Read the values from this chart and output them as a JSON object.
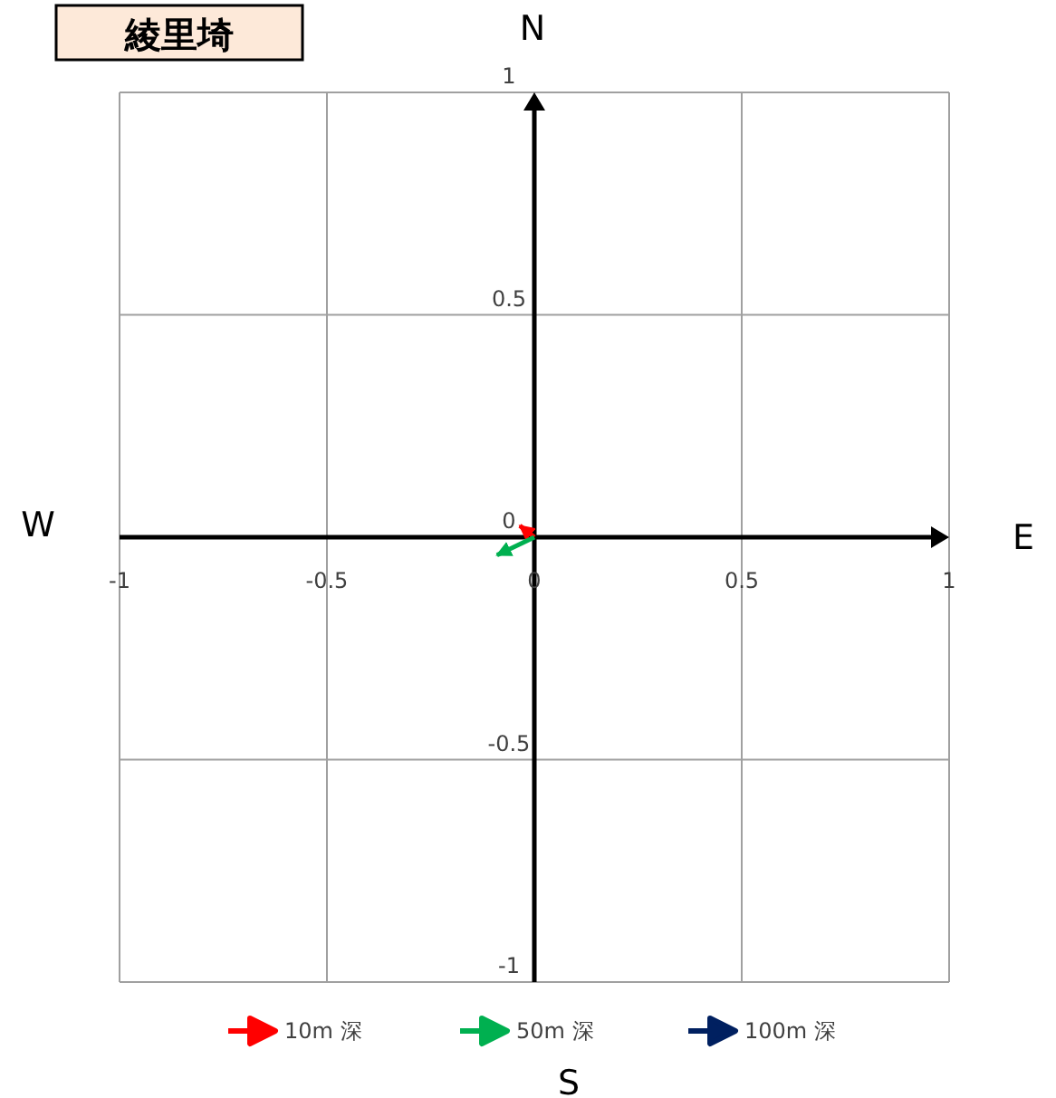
{
  "chart_data": {
    "type": "line",
    "title": "綾里埼",
    "xlim": [
      -1,
      1
    ],
    "ylim": [
      -1,
      1
    ],
    "xticks": [
      -1,
      -0.5,
      0,
      0.5,
      1
    ],
    "yticks": [
      -1,
      -0.5,
      0,
      0.5,
      1
    ],
    "grid": true,
    "legend": "bottom",
    "marker": "none",
    "annotations": [
      "N",
      "E",
      "S",
      "W"
    ],
    "series": [
      {
        "name": "10m 深",
        "color": "#ff0000",
        "x": [
          0,
          -0.035
        ],
        "values": [
          0,
          0.026
        ]
      },
      {
        "name": "50m 深",
        "color": "#00b050",
        "x": [
          0,
          -0.09
        ],
        "values": [
          0,
          -0.04
        ]
      },
      {
        "name": "100m 深",
        "color": "#002060",
        "x": [
          null,
          null
        ],
        "values": [
          null,
          null
        ]
      }
    ]
  }
}
